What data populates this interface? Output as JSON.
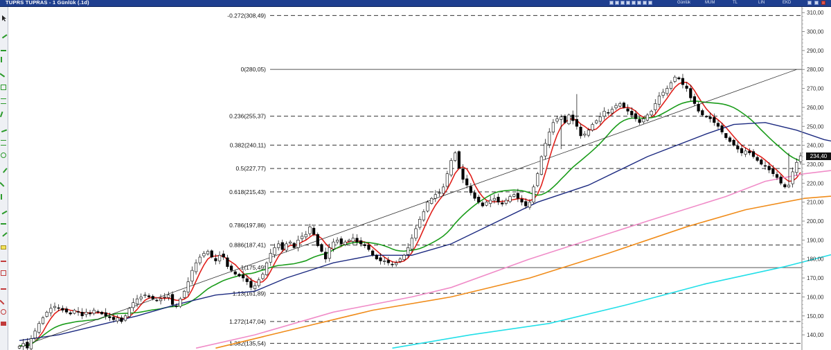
{
  "window": {
    "title": "TUPRS TUPRAS - 1 Günlük (.1d)",
    "controls": [
      "Günlük",
      "MUM",
      "TL",
      "LIN",
      "EKD"
    ]
  },
  "last_price": "234,40",
  "colors": {
    "background": "#ffffff",
    "titlebar": "#1f3f8f",
    "candle_up": "#ffffff",
    "candle_down": "#000000",
    "ma_fast": "#e0201b",
    "ma_21": "#1a9c1a",
    "ma_50": "#1c2a80",
    "ma_100": "#f08cc8",
    "ma_150": "#f0931e",
    "ma_200": "#22dfe8",
    "trendline": "#333333"
  },
  "chart_data": {
    "type": "candlestick",
    "title": "TUPRS TUPRAS - 1 Günlük (.1d)",
    "ylim": [
      132,
      313
    ],
    "yticks": [
      "140,00",
      "150,00",
      "160,00",
      "170,00",
      "180,00",
      "190,00",
      "200,00",
      "210,00",
      "220,00",
      "230,00",
      "240,00",
      "250,00",
      "260,00",
      "270,00",
      "280,00",
      "290,00",
      "300,00",
      "310,00"
    ],
    "grid": false,
    "fibonacci": [
      {
        "ratio": "-0.272",
        "price": 308.49,
        "label": "-0.272(308,49)"
      },
      {
        "ratio": "0",
        "price": 280.05,
        "label": "0(280,05)"
      },
      {
        "ratio": "0.236",
        "price": 255.37,
        "label": "0.236(255,37)"
      },
      {
        "ratio": "0.382",
        "price": 240.11,
        "label": "0.382(240,11)"
      },
      {
        "ratio": "0.5",
        "price": 227.77,
        "label": "0.5(227,77)"
      },
      {
        "ratio": "0.618",
        "price": 215.43,
        "label": "0.618(215,43)"
      },
      {
        "ratio": "0.786",
        "price": 197.86,
        "label": "0.786(197,86)"
      },
      {
        "ratio": "0.886",
        "price": 187.41,
        "label": "0.886(187,41)"
      },
      {
        "ratio": "1",
        "price": 175.49,
        "label": "1(175,49)"
      },
      {
        "ratio": "1.13",
        "price": 161.89,
        "label": "1.13(161,89)"
      },
      {
        "ratio": "1.272",
        "price": 147.04,
        "label": "1.272(147,04)"
      },
      {
        "ratio": "1.382",
        "price": 135.54,
        "label": "1.382(135,54)"
      }
    ],
    "trendline": {
      "from_bar": 0,
      "from_price": 133.5,
      "to_bar": 198,
      "to_price": 280.0
    },
    "closes": [
      134,
      135.5,
      133,
      138,
      142,
      146,
      149,
      152,
      154,
      155,
      154,
      153,
      152,
      151,
      153,
      152,
      150,
      152,
      151,
      153,
      152,
      151,
      150,
      149,
      148,
      149,
      147,
      150,
      154,
      157,
      159,
      160,
      161,
      160,
      159,
      158,
      159,
      160,
      161,
      156,
      155,
      159,
      163,
      168,
      174,
      178,
      181,
      183,
      184,
      181,
      179,
      182,
      181,
      176,
      174,
      172,
      171,
      170,
      168,
      165,
      166,
      169,
      172,
      178,
      183,
      186,
      188,
      185,
      188,
      189,
      186,
      190,
      192,
      193,
      197,
      193,
      187,
      184,
      180,
      186,
      189,
      190,
      188,
      189,
      190,
      191,
      189,
      188,
      187,
      185,
      182,
      180,
      179,
      179,
      178,
      177,
      178,
      180,
      182,
      186,
      191,
      196,
      201,
      205,
      210,
      212,
      214,
      215,
      218,
      225,
      232,
      236,
      228,
      222,
      219,
      215,
      212,
      210,
      208,
      210,
      211,
      212,
      210,
      209,
      211,
      213,
      214,
      212,
      210,
      208,
      210,
      218,
      225,
      234,
      241,
      247,
      252,
      254,
      255,
      252,
      256,
      253,
      250,
      245,
      246,
      248,
      251,
      253,
      255,
      258,
      257,
      259,
      261,
      262,
      260,
      258,
      256,
      254,
      252,
      254,
      256,
      258,
      262,
      266,
      268,
      270,
      273,
      276,
      275,
      272,
      270,
      265,
      262,
      258,
      256,
      255,
      254,
      252,
      250,
      247,
      244,
      242,
      240,
      238,
      236,
      237,
      236,
      234,
      232,
      230,
      229,
      227,
      225,
      223,
      220,
      218,
      219,
      226,
      231,
      234.4
    ],
    "series": [
      {
        "name": "",
        "color": "#e0201b",
        "period": 5
      },
      {
        "name": "",
        "color": "#1a9c1a",
        "period": 21
      },
      {
        "name": "",
        "color": "#1c2a80",
        "start": 137,
        "points": [
          [
            0,
            137
          ],
          [
            10,
            140
          ],
          [
            20,
            145
          ],
          [
            30,
            150
          ],
          [
            40,
            156
          ],
          [
            50,
            161
          ],
          [
            60,
            163
          ],
          [
            68,
            170
          ],
          [
            80,
            178
          ],
          [
            90,
            182
          ],
          [
            100,
            182
          ],
          [
            110,
            188
          ],
          [
            120,
            198
          ],
          [
            132,
            210
          ],
          [
            145,
            219
          ],
          [
            160,
            234
          ],
          [
            175,
            246
          ],
          [
            182,
            251
          ],
          [
            190,
            252
          ],
          [
            198,
            248
          ],
          [
            205,
            243
          ],
          [
            212,
            240
          ],
          [
            220,
            236
          ]
        ]
      },
      {
        "name": "",
        "color": "#f08cc8",
        "points": [
          [
            45,
            133
          ],
          [
            60,
            140
          ],
          [
            80,
            152
          ],
          [
            100,
            160
          ],
          [
            110,
            165
          ],
          [
            130,
            180
          ],
          [
            160,
            200
          ],
          [
            180,
            213
          ],
          [
            190,
            221
          ],
          [
            200,
            225
          ],
          [
            212,
            228
          ],
          [
            220,
            226
          ]
        ]
      },
      {
        "name": "",
        "color": "#f08c1a",
        "points": [
          [
            50,
            133
          ],
          [
            70,
            143
          ],
          [
            90,
            153
          ],
          [
            110,
            160
          ],
          [
            130,
            170
          ],
          [
            150,
            183
          ],
          [
            170,
            197
          ],
          [
            185,
            206
          ],
          [
            200,
            212
          ],
          [
            212,
            214
          ],
          [
            220,
            215
          ]
        ]
      },
      {
        "name": "",
        "color": "#22dfe8",
        "points": [
          [
            95,
            133
          ],
          [
            115,
            140
          ],
          [
            135,
            146
          ],
          [
            155,
            156
          ],
          [
            175,
            167
          ],
          [
            195,
            176
          ],
          [
            210,
            184
          ],
          [
            220,
            189
          ]
        ]
      }
    ]
  }
}
